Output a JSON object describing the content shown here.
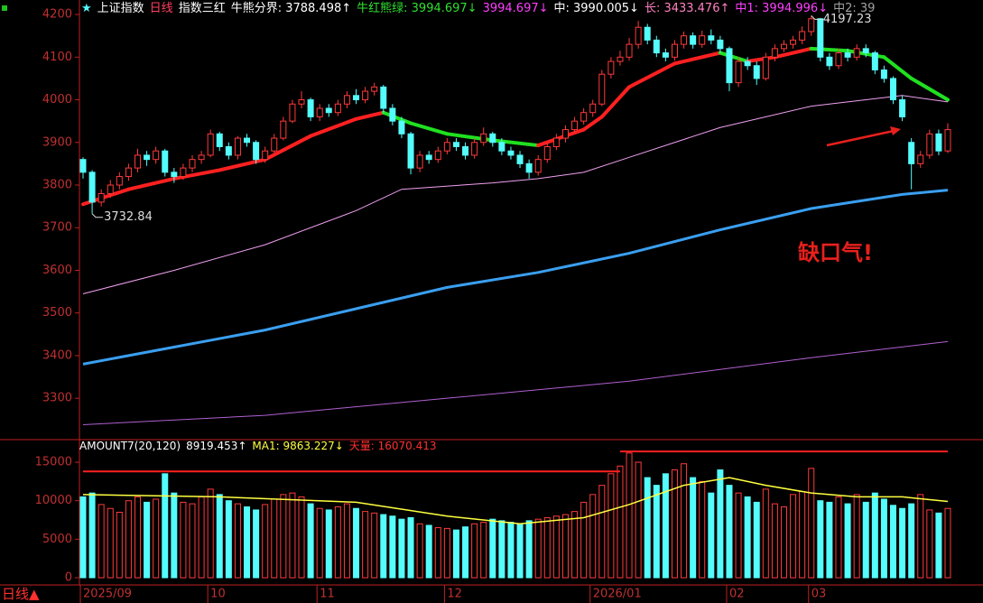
{
  "chart_data": [
    {
      "type": "candlestick",
      "header": [
        {
          "text": "★",
          "color": "#54fcfc"
        },
        {
          "text": "上证指数",
          "color": "#ffffff"
        },
        {
          "text": "日线",
          "color": "#ff4060"
        },
        {
          "text": "指数三红",
          "color": "#ffffff"
        },
        {
          "text": "牛熊分界: 3788.498↑",
          "color": "#ffffff"
        },
        {
          "text": "牛红熊绿: 3994.697↓",
          "color": "#30e030"
        },
        {
          "text": "3994.697↓",
          "color": "#ff40ff"
        },
        {
          "text": "中: 3990.005↓",
          "color": "#ffffff"
        },
        {
          "text": "长: 3433.476↑",
          "color": "#ff80c0"
        },
        {
          "text": "中1: 3994.996↓",
          "color": "#ff40ff"
        },
        {
          "text": "中2: 39",
          "color": "#a0a0a0"
        }
      ],
      "ylim": [
        3203,
        4234
      ],
      "yticks": [
        3300,
        3400,
        3500,
        3600,
        3700,
        3800,
        3900,
        4000,
        4100,
        4200
      ],
      "xticks": [
        {
          "value": 0,
          "label": "2025/09"
        },
        {
          "value": 14,
          "label": "10"
        },
        {
          "value": 26,
          "label": "11"
        },
        {
          "value": 40,
          "label": "12"
        },
        {
          "value": 56,
          "label": "2026/01"
        },
        {
          "value": 71,
          "label": "02"
        },
        {
          "value": 80,
          "label": "03"
        }
      ],
      "up_color": "#ff3a3a",
      "down_color": "#54fcfc",
      "open": [
        3860,
        3830,
        3760,
        3780,
        3800,
        3820,
        3840,
        3870,
        3860,
        3880,
        3830,
        3820,
        3840,
        3860,
        3870,
        3920,
        3890,
        3870,
        3910,
        3900,
        3860,
        3880,
        3910,
        3950,
        3990,
        4000,
        3960,
        3980,
        3970,
        3990,
        4010,
        4000,
        4020,
        4030,
        3980,
        3950,
        3920,
        3840,
        3870,
        3860,
        3880,
        3900,
        3890,
        3870,
        3900,
        3920,
        3900,
        3880,
        3870,
        3850,
        3830,
        3860,
        3890,
        3910,
        3930,
        3950,
        3970,
        3990,
        4060,
        4090,
        4100,
        4130,
        4170,
        4140,
        4110,
        4100,
        4130,
        4150,
        4130,
        4150,
        4140,
        4120,
        4040,
        4090,
        4080,
        4050,
        4100,
        4120,
        4130,
        4140,
        4160,
        4190,
        4100,
        4080,
        4110,
        4100,
        4120,
        4110,
        4070,
        4050,
        4000,
        3900,
        3850,
        3870,
        3920,
        3880
      ],
      "high": [
        3865,
        3835,
        3790,
        3812,
        3830,
        3850,
        3885,
        3880,
        3890,
        3885,
        3840,
        3850,
        3870,
        3880,
        3930,
        3925,
        3900,
        3915,
        3920,
        3905,
        3890,
        3920,
        3960,
        4000,
        4020,
        4005,
        3990,
        3990,
        4000,
        4020,
        4025,
        4030,
        4040,
        4035,
        3990,
        3960,
        3925,
        3880,
        3880,
        3890,
        3910,
        3910,
        3900,
        3910,
        3935,
        3925,
        3910,
        3890,
        3880,
        3860,
        3870,
        3900,
        3920,
        3940,
        3960,
        3980,
        4000,
        4070,
        4100,
        4115,
        4145,
        4185,
        4178,
        4150,
        4120,
        4140,
        4160,
        4158,
        4162,
        4165,
        4150,
        4125,
        4100,
        4100,
        4090,
        4110,
        4130,
        4140,
        4150,
        4172,
        4197.23,
        4192,
        4110,
        4120,
        4120,
        4130,
        4130,
        4115,
        4080,
        4055,
        4010,
        3910,
        3880,
        3930,
        3930,
        3945
      ],
      "low": [
        3815,
        3732.84,
        3750,
        3770,
        3790,
        3810,
        3830,
        3845,
        3850,
        3820,
        3805,
        3812,
        3830,
        3850,
        3865,
        3880,
        3860,
        3860,
        3890,
        3850,
        3852,
        3875,
        3905,
        3945,
        3980,
        3950,
        3950,
        3960,
        3962,
        3980,
        3990,
        3992,
        4010,
        3970,
        3940,
        3910,
        3825,
        3830,
        3850,
        3852,
        3872,
        3880,
        3860,
        3862,
        3892,
        3890,
        3870,
        3860,
        3840,
        3815,
        3822,
        3852,
        3882,
        3900,
        3922,
        3942,
        3960,
        3985,
        4050,
        4080,
        4092,
        4120,
        4130,
        4100,
        4090,
        4092,
        4120,
        4120,
        4122,
        4130,
        4110,
        4020,
        4030,
        4070,
        4035,
        4045,
        4090,
        4112,
        4120,
        4130,
        4150,
        4090,
        4070,
        4072,
        4090,
        4092,
        4100,
        4060,
        4040,
        3990,
        3950,
        3790,
        3840,
        3862,
        3870,
        3875
      ],
      "close": [
        3830,
        3760,
        3780,
        3800,
        3820,
        3840,
        3870,
        3860,
        3880,
        3830,
        3820,
        3840,
        3860,
        3870,
        3920,
        3890,
        3870,
        3910,
        3900,
        3860,
        3880,
        3910,
        3950,
        3990,
        4000,
        3960,
        3980,
        3970,
        3990,
        4010,
        4000,
        4020,
        4030,
        3980,
        3950,
        3920,
        3840,
        3870,
        3860,
        3880,
        3900,
        3890,
        3870,
        3900,
        3920,
        3900,
        3880,
        3870,
        3850,
        3830,
        3860,
        3890,
        3910,
        3930,
        3950,
        3970,
        3990,
        4060,
        4090,
        4100,
        4130,
        4170,
        4140,
        4110,
        4100,
        4130,
        4150,
        4130,
        4150,
        4140,
        4120,
        4040,
        4090,
        4080,
        4050,
        4100,
        4120,
        4130,
        4140,
        4160,
        4190,
        4100,
        4080,
        4110,
        4100,
        4120,
        4110,
        4070,
        4050,
        4000,
        3960,
        3850,
        3870,
        3920,
        3880,
        3930
      ],
      "lines": [
        {
          "colors": {
            "up": "#ff2020",
            "down": "#20e020"
          },
          "width": 4,
          "x": [
            0,
            5,
            10,
            15,
            20,
            25,
            30,
            33,
            36,
            40,
            45,
            50,
            55,
            57,
            60,
            65,
            70,
            73,
            76,
            80,
            84,
            88,
            91,
            95
          ],
          "values": [
            3755,
            3790,
            3815,
            3835,
            3860,
            3915,
            3955,
            3970,
            3945,
            3920,
            3905,
            3893,
            3930,
            3960,
            4030,
            4085,
            4110,
            4090,
            4100,
            4120,
            4115,
            4100,
            4050,
            4000
          ]
        },
        {
          "color": "#f0a0f0",
          "width": 1,
          "x": [
            0,
            10,
            20,
            30,
            35,
            45,
            50,
            55,
            60,
            70,
            80,
            90,
            95
          ],
          "values": [
            3545,
            3600,
            3660,
            3740,
            3790,
            3805,
            3815,
            3830,
            3865,
            3935,
            3985,
            4010,
            3995
          ]
        },
        {
          "color": "#3a9ff0",
          "width": 3,
          "x": [
            0,
            10,
            20,
            30,
            40,
            50,
            60,
            70,
            80,
            90,
            95
          ],
          "values": [
            3380,
            3420,
            3460,
            3510,
            3560,
            3595,
            3640,
            3695,
            3745,
            3778,
            3788
          ]
        },
        {
          "color": "#b060d0",
          "width": 1,
          "x": [
            0,
            20,
            40,
            60,
            80,
            95
          ],
          "values": [
            3238,
            3260,
            3300,
            3340,
            3395,
            3433
          ]
        }
      ],
      "annotations": [
        {
          "x": 1,
          "value": 3732.84,
          "label": "3732.84"
        },
        {
          "x": 80,
          "value": 4197.23,
          "label": "4197.23"
        }
      ],
      "note": "缺口气!",
      "footer": "日线▲"
    },
    {
      "type": "bar",
      "header": [
        {
          "text": "AMOUNT7(20,120)",
          "color": "#ffffff"
        },
        {
          "text": "8919.453↑",
          "color": "#ffffff"
        },
        {
          "text": "MA1: 9863.227↓",
          "color": "#ffff40"
        },
        {
          "text": "天量: 16070.413",
          "color": "#ff3030"
        }
      ],
      "ylim": [
        0,
        17700
      ],
      "yticks": [
        0,
        5000,
        10000,
        15000
      ],
      "values": [
        10500,
        11000,
        9500,
        9000,
        8500,
        10000,
        10500,
        9800,
        10200,
        13500,
        11000,
        9800,
        9600,
        10500,
        11500,
        10800,
        10000,
        9600,
        9200,
        8800,
        9500,
        10200,
        10800,
        11000,
        10500,
        9600,
        9000,
        8800,
        9200,
        9600,
        9000,
        8600,
        8400,
        8200,
        8000,
        7600,
        7800,
        7000,
        6800,
        6500,
        6400,
        6200,
        6600,
        7000,
        7200,
        7600,
        7400,
        7200,
        7000,
        7400,
        7600,
        7800,
        8000,
        8200,
        8600,
        9800,
        10800,
        12000,
        13500,
        14500,
        16200,
        15000,
        13000,
        12000,
        13500,
        14000,
        14800,
        13000,
        12500,
        11000,
        14000,
        12000,
        11000,
        10500,
        9800,
        11500,
        9600,
        9200,
        10800,
        11200,
        14200,
        10000,
        9800,
        10500,
        9600,
        10800,
        9800,
        11000,
        10200,
        9400,
        9000,
        9600,
        10800,
        8800,
        8400,
        9000
      ],
      "lines": [
        {
          "color": "#ffff40",
          "width": 1.5,
          "x": [
            0,
            15,
            30,
            40,
            48,
            55,
            60,
            66,
            71,
            75,
            80,
            85,
            90,
            95
          ],
          "values": [
            10800,
            10500,
            9800,
            8000,
            7000,
            7800,
            9500,
            12000,
            13000,
            12000,
            11000,
            10500,
            10500,
            9900
          ]
        }
      ],
      "levels": [
        {
          "value": 13800,
          "x": [
            0,
            59
          ],
          "color": "#ff2020"
        },
        {
          "value": 16400,
          "x": [
            59,
            95
          ],
          "color": "#ff2020"
        }
      ]
    }
  ]
}
